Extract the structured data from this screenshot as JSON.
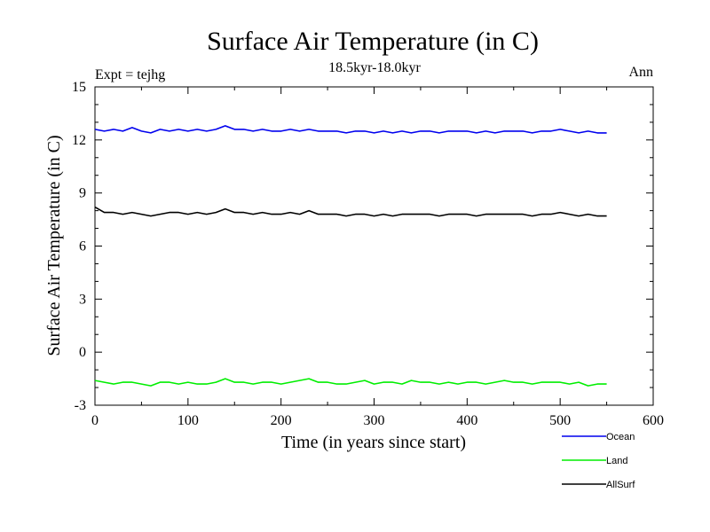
{
  "chart_data": {
    "type": "line",
    "title": "Surface Air Temperature (in C)",
    "subtitle": "18.5kyr-18.0kyr",
    "left_label": "Expt = tejhg",
    "right_label": "Ann",
    "xlabel": "Time (in years since start)",
    "ylabel": "Surface Air Temperature (in C)",
    "xlim": [
      0,
      600
    ],
    "ylim": [
      -3,
      15
    ],
    "xticks": [
      0,
      100,
      200,
      300,
      400,
      500,
      600
    ],
    "yticks": [
      -3,
      0,
      3,
      6,
      9,
      12,
      15
    ],
    "x": [
      0,
      10,
      20,
      30,
      40,
      50,
      60,
      70,
      80,
      90,
      100,
      110,
      120,
      130,
      140,
      150,
      160,
      170,
      180,
      190,
      200,
      210,
      220,
      230,
      240,
      250,
      260,
      270,
      280,
      290,
      300,
      310,
      320,
      330,
      340,
      350,
      360,
      370,
      380,
      390,
      400,
      410,
      420,
      430,
      440,
      450,
      460,
      470,
      480,
      490,
      500,
      510,
      520,
      530,
      540,
      550
    ],
    "series": [
      {
        "name": "Ocean",
        "color": "#0000ee",
        "values": [
          12.6,
          12.5,
          12.6,
          12.5,
          12.7,
          12.5,
          12.4,
          12.6,
          12.5,
          12.6,
          12.5,
          12.6,
          12.5,
          12.6,
          12.8,
          12.6,
          12.6,
          12.5,
          12.6,
          12.5,
          12.5,
          12.6,
          12.5,
          12.6,
          12.5,
          12.5,
          12.5,
          12.4,
          12.5,
          12.5,
          12.4,
          12.5,
          12.4,
          12.5,
          12.4,
          12.5,
          12.5,
          12.4,
          12.5,
          12.5,
          12.5,
          12.4,
          12.5,
          12.4,
          12.5,
          12.5,
          12.5,
          12.4,
          12.5,
          12.5,
          12.6,
          12.5,
          12.4,
          12.5,
          12.4,
          12.4
        ]
      },
      {
        "name": "Land",
        "color": "#00ee00",
        "values": [
          -1.6,
          -1.7,
          -1.8,
          -1.7,
          -1.7,
          -1.8,
          -1.9,
          -1.7,
          -1.7,
          -1.8,
          -1.7,
          -1.8,
          -1.8,
          -1.7,
          -1.5,
          -1.7,
          -1.7,
          -1.8,
          -1.7,
          -1.7,
          -1.8,
          -1.7,
          -1.6,
          -1.5,
          -1.7,
          -1.7,
          -1.8,
          -1.8,
          -1.7,
          -1.6,
          -1.8,
          -1.7,
          -1.7,
          -1.8,
          -1.6,
          -1.7,
          -1.7,
          -1.8,
          -1.7,
          -1.8,
          -1.7,
          -1.7,
          -1.8,
          -1.7,
          -1.6,
          -1.7,
          -1.7,
          -1.8,
          -1.7,
          -1.7,
          -1.7,
          -1.8,
          -1.7,
          -1.9,
          -1.8,
          -1.8
        ]
      },
      {
        "name": "AllSurf",
        "color": "#000000",
        "values": [
          8.2,
          7.9,
          7.9,
          7.8,
          7.9,
          7.8,
          7.7,
          7.8,
          7.9,
          7.9,
          7.8,
          7.9,
          7.8,
          7.9,
          8.1,
          7.9,
          7.9,
          7.8,
          7.9,
          7.8,
          7.8,
          7.9,
          7.8,
          8.0,
          7.8,
          7.8,
          7.8,
          7.7,
          7.8,
          7.8,
          7.7,
          7.8,
          7.7,
          7.8,
          7.8,
          7.8,
          7.8,
          7.7,
          7.8,
          7.8,
          7.8,
          7.7,
          7.8,
          7.8,
          7.8,
          7.8,
          7.8,
          7.7,
          7.8,
          7.8,
          7.9,
          7.8,
          7.7,
          7.8,
          7.7,
          7.7
        ]
      }
    ],
    "legend_position": "bottom-right"
  }
}
